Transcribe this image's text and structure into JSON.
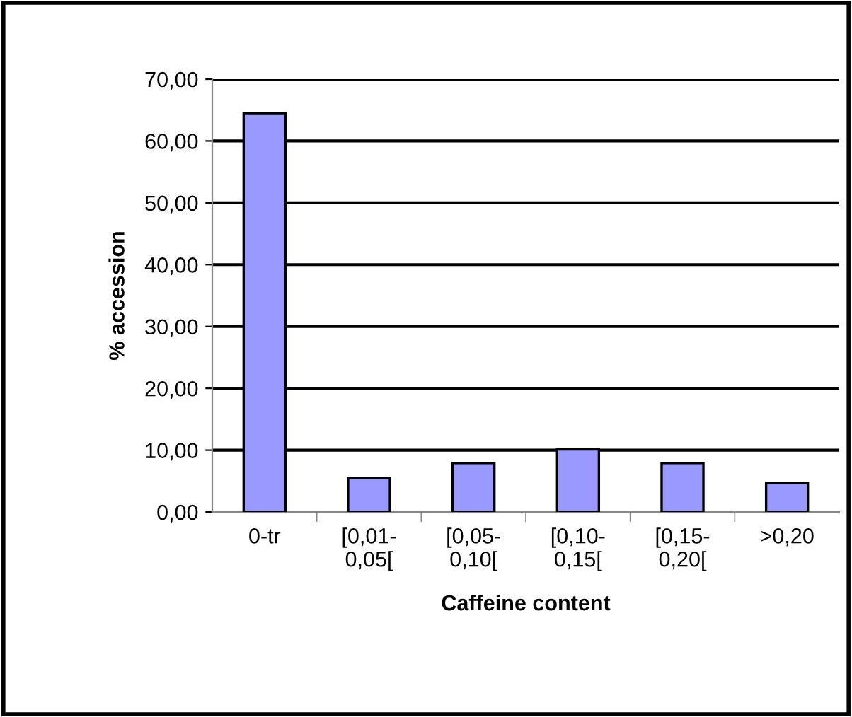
{
  "chart_data": {
    "type": "bar",
    "xlabel": "Caffeine content",
    "ylabel": "% accession",
    "categories": [
      "0-tr",
      "[0,01-\n0,05[",
      "[0,05-\n0,10[",
      "[0,10-\n0,15[",
      "[0,15-\n0,20[",
      ">0,20"
    ],
    "values": [
      64.5,
      5.5,
      7.9,
      10.1,
      7.9,
      4.7
    ],
    "color": "#9999ff",
    "ylim": [
      0,
      70
    ],
    "yticks": [
      {
        "value": 0,
        "label": "0,00"
      },
      {
        "value": 10,
        "label": "10,00"
      },
      {
        "value": 20,
        "label": "20,00"
      },
      {
        "value": 30,
        "label": "30,00"
      },
      {
        "value": 40,
        "label": "40,00"
      },
      {
        "value": 50,
        "label": "50,00"
      },
      {
        "value": 60,
        "label": "60,00"
      },
      {
        "value": 70,
        "label": "70,00"
      }
    ],
    "grid": "y"
  }
}
